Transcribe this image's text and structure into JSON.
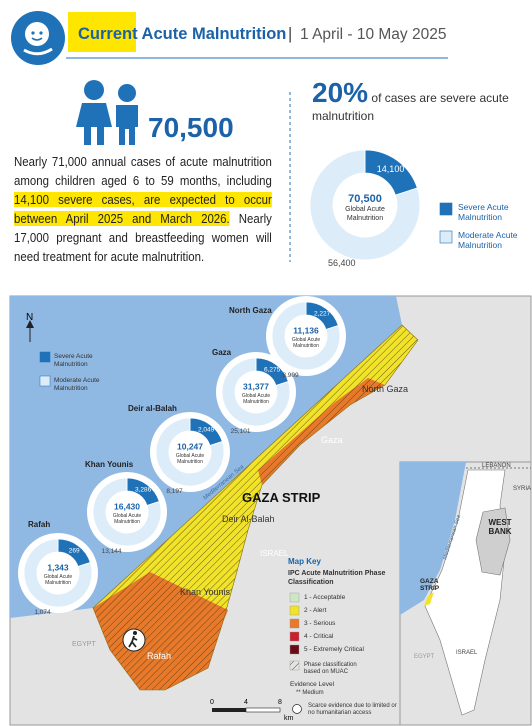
{
  "header": {
    "title": "Current Acute Malnutrition",
    "separator": "|",
    "date": "1 April - 10 May 2025"
  },
  "summary": {
    "total": "70,500",
    "paragraph": [
      "Nearly 71,000 annual cases of acute malnutrition among children aged 6 to 59 months, including ",
      "14,100 severe cases, are expected to occur between April 2025 and March 2026.",
      " Nearly 17,000 pregnant and breastfeeding women will need treatment for acute malnutrition."
    ]
  },
  "severe_share": {
    "percent": "20%",
    "text": "of cases are severe acute malnutrition"
  },
  "chart_data": [
    {
      "type": "pie",
      "categories": [
        "Severe Acute Malnutrition",
        "Moderate Acute Malnutrition"
      ],
      "values": [
        14100,
        56400
      ],
      "value_labels": [
        "14,100",
        "56,400"
      ],
      "colors": [
        "#1f72b8",
        "#dcedf9"
      ],
      "center_label": "70,500",
      "center_text": "Global Acute Malnutrition"
    },
    {
      "type": "pie",
      "title": "Rafah",
      "values": [
        269,
        1074
      ],
      "value_labels": [
        "269",
        "1,074"
      ],
      "colors": [
        "#1f72b8",
        "#dcedf9"
      ],
      "center_label": "1,343",
      "center_text": "Global Acute Malnutrition"
    },
    {
      "type": "pie",
      "title": "Khan Younis",
      "values": [
        3286,
        13144
      ],
      "value_labels": [
        "3,286",
        "13,144"
      ],
      "colors": [
        "#1f72b8",
        "#dcedf9"
      ],
      "center_label": "16,430",
      "center_text": "Global Acute Malnutrition"
    },
    {
      "type": "pie",
      "title": "Deir al-Balah",
      "values": [
        2049,
        8197
      ],
      "value_labels": [
        "2,049",
        "8,197"
      ],
      "colors": [
        "#1f72b8",
        "#dcedf9"
      ],
      "center_label": "10,247",
      "center_text": "Global Acute Malnutrition"
    },
    {
      "type": "pie",
      "title": "Gaza",
      "values": [
        6275,
        25101
      ],
      "value_labels": [
        "6,275",
        "25,101"
      ],
      "colors": [
        "#1f72b8",
        "#dcedf9"
      ],
      "center_label": "31,377",
      "center_text": "Global Acute Malnutrition"
    },
    {
      "type": "pie",
      "title": "North Gaza",
      "values": [
        2227,
        8909
      ],
      "value_labels": [
        "2,227",
        "8,909"
      ],
      "colors": [
        "#1f72b8",
        "#dcedf9"
      ],
      "center_label": "11,136",
      "center_text": "Global Acute Malnutrition"
    }
  ],
  "map": {
    "north": "N",
    "legend": [
      "Severe Acute Malnutrition",
      "Moderate Acute Malnutrition"
    ],
    "labels": {
      "north_gaza": "North Gaza",
      "gaza": "Gaza",
      "deir": "Deir Al-Balah",
      "khan": "Khan Younis",
      "rafah": "Rafah",
      "strip": "GAZA STRIP",
      "israel": "ISRAEL",
      "egypt": "EGYPT",
      "sea": "Mediterranean Sea"
    },
    "key": {
      "title": "Map Key",
      "subtitle": "IPC Acute Malnutrition Phase Classification",
      "phases": [
        {
          "label": "1 - Acceptable",
          "color": "#cfe6c5"
        },
        {
          "label": "2 - Alert",
          "color": "#f1e32a"
        },
        {
          "label": "3 - Serious",
          "color": "#e8792a"
        },
        {
          "label": "4 - Critical",
          "color": "#c8232c"
        },
        {
          "label": "5 - Extremely Critical",
          "color": "#6b0b14"
        }
      ],
      "muac": "Phase classification based on MUAC",
      "evidence": "Evidence Level",
      "medium": "** Medium",
      "scarce": "Scarce evidence due to limited or no humanitarian access"
    },
    "scale": [
      "0",
      "4",
      "8",
      "km"
    ],
    "inset": {
      "lebanon": "LEBANON",
      "syria": "SYRIA",
      "west_bank": "WEST BANK",
      "gaza_strip": "GAZA STRIP",
      "israel": "ISRAEL",
      "egypt": "EGYPT",
      "sea": "Mediterranean Sea"
    }
  }
}
